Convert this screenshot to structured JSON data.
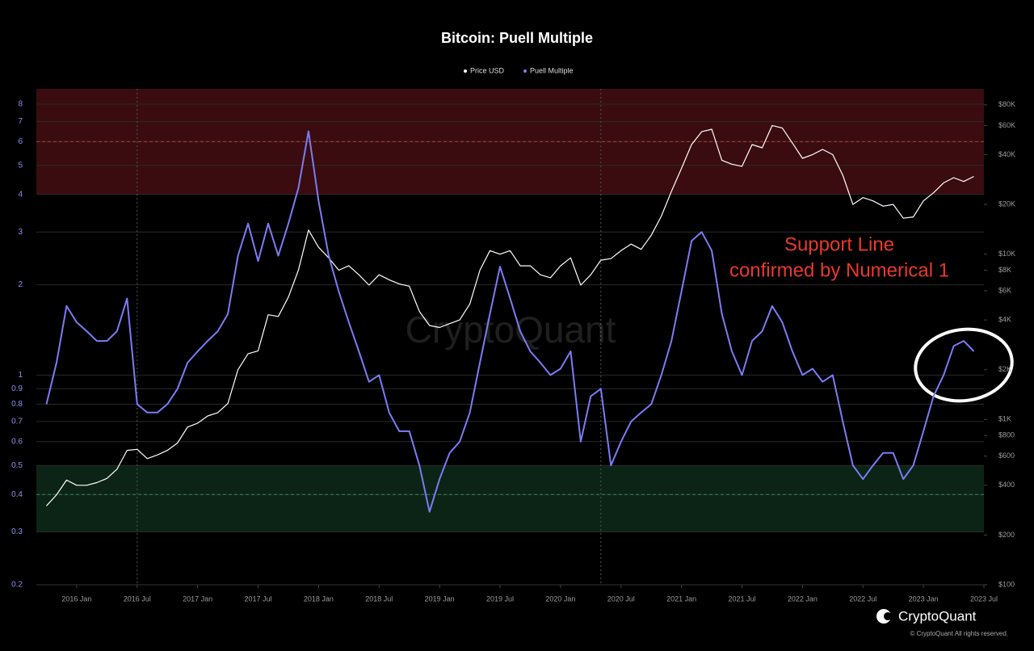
{
  "chart_data": {
    "type": "line",
    "title": "Bitcoin: Puell Multiple",
    "x": [
      "2015-10",
      "2015-11",
      "2015-12",
      "2016-01",
      "2016-02",
      "2016-03",
      "2016-04",
      "2016-05",
      "2016-06",
      "2016-07",
      "2016-08",
      "2016-09",
      "2016-10",
      "2016-11",
      "2016-12",
      "2017-01",
      "2017-02",
      "2017-03",
      "2017-04",
      "2017-05",
      "2017-06",
      "2017-07",
      "2017-08",
      "2017-09",
      "2017-10",
      "2017-11",
      "2017-12",
      "2018-01",
      "2018-02",
      "2018-03",
      "2018-04",
      "2018-05",
      "2018-06",
      "2018-07",
      "2018-08",
      "2018-09",
      "2018-10",
      "2018-11",
      "2018-12",
      "2019-01",
      "2019-02",
      "2019-03",
      "2019-04",
      "2019-05",
      "2019-06",
      "2019-07",
      "2019-08",
      "2019-09",
      "2019-10",
      "2019-11",
      "2019-12",
      "2020-01",
      "2020-02",
      "2020-03",
      "2020-04",
      "2020-05",
      "2020-06",
      "2020-07",
      "2020-08",
      "2020-09",
      "2020-10",
      "2020-11",
      "2020-12",
      "2021-01",
      "2021-02",
      "2021-03",
      "2021-04",
      "2021-05",
      "2021-06",
      "2021-07",
      "2021-08",
      "2021-09",
      "2021-10",
      "2021-11",
      "2021-12",
      "2022-01",
      "2022-02",
      "2022-03",
      "2022-04",
      "2022-05",
      "2022-06",
      "2022-07",
      "2022-08",
      "2022-09",
      "2022-10",
      "2022-11",
      "2022-12",
      "2023-01",
      "2023-02",
      "2023-03",
      "2023-04",
      "2023-05",
      "2023-06"
    ],
    "series": [
      {
        "name": "Price USD",
        "color": "#ffffff",
        "axis": "y2",
        "values": [
          300,
          350,
          430,
          400,
          400,
          415,
          440,
          500,
          650,
          660,
          580,
          610,
          650,
          720,
          900,
          950,
          1050,
          1100,
          1250,
          2000,
          2500,
          2600,
          4300,
          4200,
          5500,
          8000,
          14000,
          11000,
          9500,
          8000,
          8500,
          7500,
          6500,
          7500,
          7000,
          6600,
          6400,
          4500,
          3700,
          3600,
          3800,
          4000,
          5000,
          8000,
          10500,
          10000,
          10500,
          8500,
          8500,
          7500,
          7200,
          8500,
          9500,
          6500,
          7500,
          9200,
          9400,
          10500,
          11500,
          10700,
          13000,
          17000,
          24000,
          33000,
          46000,
          55000,
          57000,
          37000,
          35000,
          34000,
          46000,
          44000,
          60000,
          58000,
          47000,
          38000,
          40000,
          43000,
          40000,
          30000,
          20000,
          22000,
          21000,
          19500,
          20000,
          16500,
          16800,
          21000,
          23500,
          27000,
          29000,
          27500,
          29500
        ]
      },
      {
        "name": "Puell Multiple",
        "color": "#7b7cf5",
        "values": [
          0.8,
          1.1,
          1.7,
          1.5,
          1.4,
          1.3,
          1.3,
          1.4,
          1.8,
          0.8,
          0.75,
          0.75,
          0.8,
          0.9,
          1.1,
          1.2,
          1.3,
          1.4,
          1.6,
          2.5,
          3.2,
          2.4,
          3.2,
          2.5,
          3.2,
          4.2,
          6.5,
          3.8,
          2.5,
          1.9,
          1.5,
          1.2,
          0.95,
          1.0,
          0.75,
          0.65,
          0.65,
          0.5,
          0.35,
          0.45,
          0.55,
          0.6,
          0.75,
          1.1,
          1.6,
          2.3,
          1.8,
          1.4,
          1.2,
          1.1,
          1.0,
          1.05,
          1.2,
          0.6,
          0.85,
          0.9,
          0.5,
          0.6,
          0.7,
          0.75,
          0.8,
          1.0,
          1.3,
          1.9,
          2.8,
          3.0,
          2.6,
          1.6,
          1.2,
          1.0,
          1.3,
          1.4,
          1.7,
          1.5,
          1.2,
          1.0,
          1.05,
          0.95,
          1.0,
          0.7,
          0.5,
          0.45,
          0.5,
          0.55,
          0.55,
          0.45,
          0.5,
          0.65,
          0.85,
          1.0,
          1.25,
          1.3,
          1.2
        ]
      }
    ],
    "xlim": [
      "2015-09",
      "2023-07"
    ],
    "xticks": [
      {
        "value": "2016-01",
        "label": "2016 Jan"
      },
      {
        "value": "2016-07",
        "label": "2016 Jul"
      },
      {
        "value": "2017-01",
        "label": "2017 Jan"
      },
      {
        "value": "2017-07",
        "label": "2017 Jul"
      },
      {
        "value": "2018-01",
        "label": "2018 Jan"
      },
      {
        "value": "2018-07",
        "label": "2018 Jul"
      },
      {
        "value": "2019-01",
        "label": "2019 Jan"
      },
      {
        "value": "2019-07",
        "label": "2019 Jul"
      },
      {
        "value": "2020-01",
        "label": "2020 Jan"
      },
      {
        "value": "2020-07",
        "label": "2020 Jul"
      },
      {
        "value": "2021-01",
        "label": "2021 Jan"
      },
      {
        "value": "2021-07",
        "label": "2021 Jul"
      },
      {
        "value": "2022-01",
        "label": "2022 Jan"
      },
      {
        "value": "2022-07",
        "label": "2022 Jul"
      },
      {
        "value": "2023-01",
        "label": "2023 Jan"
      },
      {
        "value": "2023-07",
        "label": "2023 Jul"
      }
    ],
    "ylim": [
      0.2,
      9
    ],
    "yscale": "log",
    "yticks": [
      0.2,
      0.3,
      0.4,
      0.5,
      0.6,
      0.7,
      0.8,
      0.9,
      1,
      2,
      3,
      4,
      5,
      6,
      7,
      8
    ],
    "y2lim": [
      100,
      100000
    ],
    "y2scale": "log",
    "y2ticks": [
      {
        "value": 100,
        "label": "$100"
      },
      {
        "value": 200,
        "label": "$200"
      },
      {
        "value": 400,
        "label": "$400"
      },
      {
        "value": 600,
        "label": "$600"
      },
      {
        "value": 800,
        "label": "$800"
      },
      {
        "value": 1000,
        "label": "$1K"
      },
      {
        "value": 2000,
        "label": "$2K"
      },
      {
        "value": 4000,
        "label": "$4K"
      },
      {
        "value": 6000,
        "label": "$6K"
      },
      {
        "value": 8000,
        "label": "$8K"
      },
      {
        "value": 10000,
        "label": "$10K"
      },
      {
        "value": 20000,
        "label": "$20K"
      },
      {
        "value": 40000,
        "label": "$40K"
      },
      {
        "value": 60000,
        "label": "$60K"
      },
      {
        "value": 80000,
        "label": "$80K"
      }
    ],
    "grid": true,
    "zones": [
      {
        "from": 4,
        "to": 9,
        "color": "#3a0c10"
      },
      {
        "from": 0.3,
        "to": 0.5,
        "color": "#0c2416"
      }
    ],
    "reference_lines": [
      {
        "value": 6,
        "color": "#c0392b"
      },
      {
        "value": 0.4,
        "color": "#2e8b57"
      }
    ],
    "vlines": [
      "2016-07",
      "2020-05"
    ],
    "annotation": [
      "Support Line",
      "confirmed by Numerical 1"
    ],
    "watermark": "CryptoQuant",
    "footer": {
      "brand": "CryptoQuant",
      "copyright": "© CryptoQuant All rights reserved."
    }
  }
}
